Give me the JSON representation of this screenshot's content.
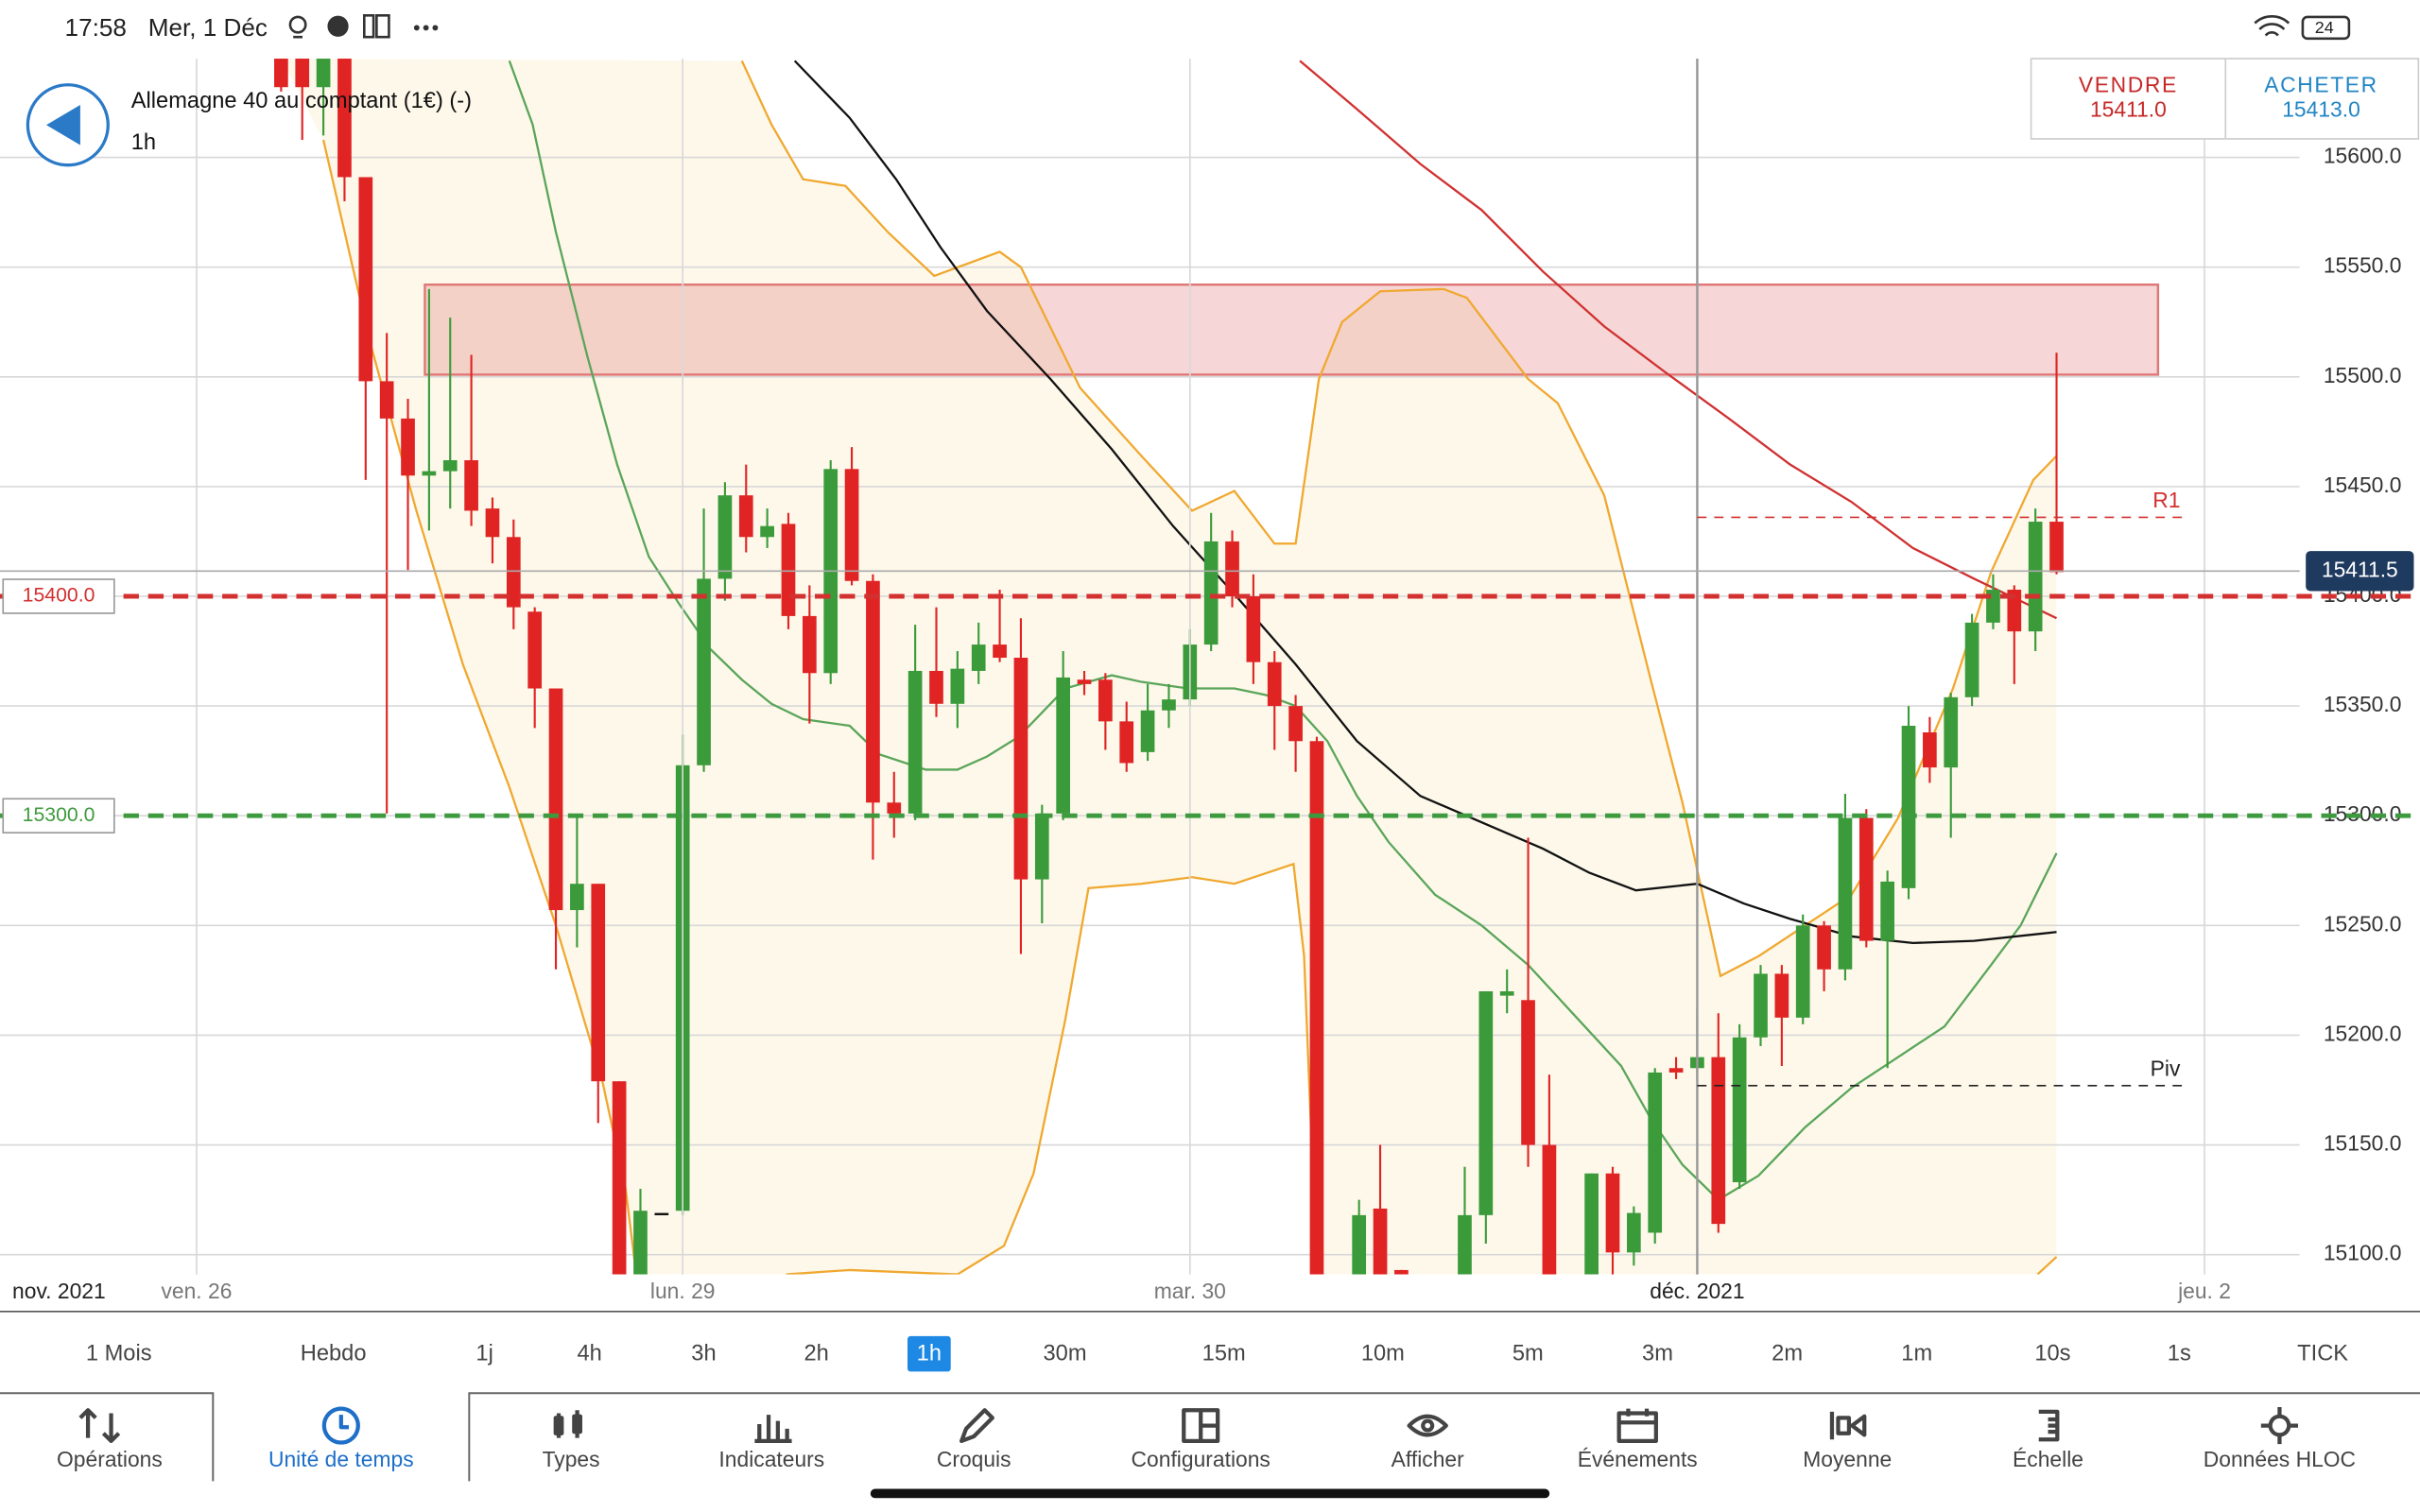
{
  "status_bar": {
    "time": "17:58",
    "date": "Mer, 1 Déc",
    "battery": "24"
  },
  "instrument": {
    "name": "Allemagne 40 au comptant (1€) (-)",
    "timeframe": "1h"
  },
  "quote": {
    "sell_label": "VENDRE",
    "sell_price": "15411.0",
    "buy_label": "ACHETER",
    "buy_price": "15413.0"
  },
  "chart_data": {
    "type": "candlestick",
    "x": [
      0,
      1,
      2,
      3,
      4,
      5,
      6,
      7,
      8,
      9,
      10,
      11,
      12,
      13,
      14,
      15,
      16,
      17,
      18,
      19,
      20,
      21,
      22,
      23,
      24,
      25,
      26,
      27,
      28,
      29,
      30,
      31,
      32,
      33,
      34,
      35,
      36,
      37,
      38,
      39,
      40,
      41,
      42,
      43,
      44,
      45,
      46,
      47,
      48,
      49,
      51,
      52,
      53,
      56,
      57,
      58,
      59,
      60,
      62,
      63,
      64,
      65,
      66,
      67,
      68,
      69,
      70,
      71,
      72,
      73,
      74,
      75,
      76,
      77,
      78,
      79,
      80,
      81,
      82,
      83,
      84
    ],
    "open": [
      15645,
      15645,
      15632,
      15645,
      15591,
      15498,
      15481,
      15455,
      15457,
      15462,
      15440,
      15427,
      15393,
      15358,
      15257,
      15269,
      15179,
      15091,
      15119,
      15120,
      15323,
      15408,
      15446,
      15427,
      15433,
      15391,
      15365,
      15458,
      15407,
      15306,
      15301,
      15366,
      15351,
      15366,
      15378,
      15372,
      15271,
      15301,
      15362,
      15362,
      15343,
      15329,
      15348,
      15353,
      15378,
      15425,
      15400,
      15370,
      15350,
      15334,
      15091,
      15121,
      15093,
      15091,
      15118,
      15218,
      15216,
      15150,
      15091,
      15137,
      15101,
      15110,
      15185,
      15185,
      15190,
      15133,
      15199,
      15228,
      15208,
      15250,
      15230,
      15299,
      15243,
      15267,
      15338,
      15322,
      15354,
      15388,
      15403,
      15384,
      15434
    ],
    "high": [
      15645,
      15645,
      15645,
      15645,
      15591,
      15520,
      15490,
      15540,
      15527,
      15510,
      15445,
      15435,
      15395,
      15358,
      15300,
      15269,
      15179,
      15130,
      15119,
      15337,
      15440,
      15452,
      15460,
      15440,
      15438,
      15405,
      15462,
      15468,
      15410,
      15320,
      15387,
      15395,
      15375,
      15388,
      15403,
      15390,
      15305,
      15375,
      15366,
      15365,
      15352,
      15360,
      15360,
      15385,
      15438,
      15430,
      15410,
      15375,
      15355,
      15336,
      15125,
      15150,
      15093,
      15140,
      15220,
      15230,
      15290,
      15182,
      15137,
      15140,
      15122,
      15185,
      15190,
      15212,
      15210,
      15205,
      15232,
      15232,
      15255,
      15252,
      15310,
      15303,
      15275,
      15350,
      15345,
      15356,
      15392,
      15410,
      15405,
      15440,
      15511
    ],
    "low": [
      15630,
      15608,
      15610,
      15580,
      15453,
      15301,
      15412,
      15430,
      15440,
      15432,
      15415,
      15385,
      15340,
      15230,
      15240,
      15160,
      15091,
      15091,
      15119,
      15118,
      15320,
      15398,
      15420,
      15422,
      15385,
      15342,
      15360,
      15405,
      15280,
      15290,
      15298,
      15345,
      15340,
      15360,
      15370,
      15237,
      15251,
      15298,
      15355,
      15330,
      15320,
      15325,
      15340,
      15350,
      15375,
      15395,
      15360,
      15330,
      15320,
      15091,
      15091,
      15091,
      15091,
      15091,
      15105,
      15210,
      15140,
      15091,
      15091,
      15091,
      15095,
      15105,
      15180,
      15180,
      15110,
      15130,
      15195,
      15186,
      15205,
      15220,
      15225,
      15240,
      15185,
      15262,
      15315,
      15290,
      15350,
      15385,
      15360,
      15375,
      15410
    ],
    "close": [
      15632,
      15632,
      15645,
      15591,
      15498,
      15481,
      15455,
      15457,
      15462,
      15439,
      15427,
      15395,
      15358,
      15257,
      15269,
      15179,
      15091,
      15120,
      15119,
      15323,
      15408,
      15446,
      15427,
      15432,
      15391,
      15365,
      15458,
      15407,
      15306,
      15301,
      15366,
      15351,
      15367,
      15378,
      15372,
      15271,
      15301,
      15363,
      15360,
      15343,
      15324,
      15348,
      15353,
      15378,
      15425,
      15400,
      15370,
      15350,
      15334,
      15091,
      15118,
      15091,
      15091,
      15118,
      15220,
      15220,
      15150,
      15091,
      15137,
      15101,
      15119,
      15183,
      15183,
      15190,
      15114,
      15199,
      15228,
      15208,
      15250,
      15230,
      15299,
      15243,
      15270,
      15341,
      15322,
      15354,
      15388,
      15403,
      15384,
      15434,
      15411
    ],
    "up_color": "#3b9b3b",
    "down_color": "#e02424",
    "doji_color": "#111111",
    "xlim": [
      -13.3,
      95.5
    ],
    "xticks": [
      {
        "value": -4,
        "label": "ven. 26"
      },
      {
        "value": 19,
        "label": "lun. 29"
      },
      {
        "value": 43,
        "label": "mar. 30"
      },
      {
        "value": 67,
        "label": "déc. 2021"
      },
      {
        "value": 91,
        "label": "jeu. 2"
      }
    ],
    "month_label": "nov. 2021",
    "ylim": [
      15091,
      15645
    ],
    "yticks": [
      {
        "value": 15100,
        "label": "15100.0"
      },
      {
        "value": 15150,
        "label": "15150.0"
      },
      {
        "value": 15200,
        "label": "15200.0"
      },
      {
        "value": 15250,
        "label": "15250.0"
      },
      {
        "value": 15300,
        "label": "15300.0"
      },
      {
        "value": 15350,
        "label": "15350.0"
      },
      {
        "value": 15400,
        "label": "15400.0"
      },
      {
        "value": 15450,
        "label": "15450.0"
      },
      {
        "value": 15500,
        "label": "15500.0"
      },
      {
        "value": 15550,
        "label": "15550.0"
      },
      {
        "value": 15600,
        "label": "15600.0"
      }
    ],
    "grid": true,
    "zone": {
      "x": [
        6.8,
        88.8
      ],
      "y": [
        15501,
        15542
      ],
      "color": "#e07878"
    },
    "band_fill": "#fdf8ea",
    "overlays": [
      {
        "color": "#f0a830",
        "x": [
          21.8,
          23.2,
          24.7,
          26.7,
          28.7,
          30.9,
          34.0,
          35.0,
          37.8,
          40.7,
          43.1,
          45.1,
          47.0,
          48.0,
          49.1,
          50.2,
          52.0,
          55.0,
          56.1,
          59.0,
          60.4,
          62.6,
          64.8,
          66.3,
          68.1,
          69.9,
          72.1,
          74.3,
          76.5,
          79.1,
          80.9,
          82.9,
          84.0
        ],
        "values": [
          15644,
          15615,
          15590,
          15587,
          15566,
          15546,
          15557,
          15550,
          15495,
          15464,
          15439,
          15448,
          15424,
          15424,
          15499,
          15525,
          15539,
          15540,
          15536,
          15499,
          15488,
          15446,
          15362,
          15306,
          15227,
          15236,
          15250,
          15264,
          15299,
          15358,
          15411,
          15453,
          15464
        ]
      },
      {
        "color": "#f0a830",
        "x": [
          2.0,
          4.2,
          6.4,
          8.6,
          10.8,
          13.0,
          15.2,
          16.3,
          16.8,
          20,
          23.9,
          26.9,
          32.0,
          34.2,
          35.6,
          37.1,
          38.2,
          40.7,
          43.1,
          45.1,
          47.9,
          48.4,
          49.0,
          66,
          83.1,
          84.0
        ],
        "values": [
          15608,
          15516,
          15439,
          15369,
          15313,
          15250,
          15179,
          15130,
          15091,
          null,
          15091,
          15093,
          15091,
          15104,
          15137,
          15207,
          15267,
          15269,
          15272,
          15269,
          15278,
          15236,
          15091,
          null,
          15091,
          15099
        ]
      },
      {
        "color": "#5aa55a",
        "x": [
          10.8,
          11.9,
          13.0,
          14.5,
          15.9,
          17.4,
          18.8,
          20.3,
          21.8,
          23.2,
          24.7,
          26.9,
          28.3,
          30.5,
          32.0,
          33.4,
          34.9,
          37.1,
          39.3,
          40.7,
          42.9,
          45.1,
          46.6,
          48.0,
          49.5,
          50.9,
          52.4,
          54.6,
          56.8,
          59.0,
          61.2,
          63.4,
          64.8,
          66.3,
          68.0,
          69.9,
          72.1,
          74.3,
          76.5,
          78.7,
          80.9,
          82.3,
          84.0
        ],
        "values": [
          15644,
          15615,
          15566,
          15509,
          15460,
          15418,
          15397,
          15376,
          15362,
          15351,
          15344,
          15341,
          15328,
          15321,
          15321,
          15327,
          15336,
          15358,
          15364,
          15361,
          15358,
          15358,
          15355,
          15350,
          15334,
          15309,
          15288,
          15264,
          15250,
          15232,
          15209,
          15186,
          15162,
          15141,
          15125,
          15136,
          15158,
          15176,
          15190,
          15204,
          15232,
          15250,
          15283
        ]
      },
      {
        "color": "#111111",
        "x": [
          24.3,
          26.9,
          29.1,
          31.2,
          33.4,
          36.4,
          39.3,
          42.2,
          45.1,
          48.0,
          50.9,
          53.9,
          56.8,
          59.7,
          61.9,
          64.1,
          67.0,
          69.2,
          71.4,
          74.3,
          77.2,
          80.1,
          84.0
        ],
        "values": [
          15644,
          15618,
          15590,
          15559,
          15530,
          15499,
          15467,
          15432,
          15401,
          15369,
          15334,
          15309,
          15297,
          15285,
          15274,
          15266,
          15269,
          15260,
          15253,
          15245,
          15242,
          15243,
          15247
        ]
      },
      {
        "color": "#d03030",
        "x": [
          48.2,
          50.9,
          53.9,
          56.8,
          59.7,
          62.6,
          65.5,
          68.5,
          71.4,
          74.3,
          77.2,
          80.1,
          84.0
        ],
        "values": [
          15644,
          15622,
          15597,
          15576,
          15548,
          15523,
          15502,
          15481,
          15460,
          15443,
          15422,
          15408,
          15390
        ]
      }
    ],
    "levels": [
      {
        "value": 15400,
        "label": "15400.0",
        "color": "#d33030",
        "style": "bold",
        "label_position": "left"
      },
      {
        "value": 15300,
        "label": "15300.0",
        "color": "#3e9a3e",
        "style": "bold",
        "label_position": "left"
      },
      {
        "value": 15436,
        "label": "R1",
        "color": "#d33030",
        "style": "thin",
        "label_position": "right"
      },
      {
        "value": 15177,
        "label": "Piv",
        "color": "#222222",
        "style": "thin",
        "label_position": "right"
      }
    ],
    "last_price": {
      "value": 15411.5,
      "label": "15411.5"
    }
  },
  "timeframes": {
    "items": [
      "1 Mois",
      "Hebdo",
      "1j",
      "4h",
      "3h",
      "2h",
      "1h",
      "30m",
      "15m",
      "10m",
      "5m",
      "3m",
      "2m",
      "1m",
      "10s",
      "1s",
      "TICK"
    ],
    "selected": 6
  },
  "toolbar": {
    "items": [
      "Opérations",
      "Unité de temps",
      "Types",
      "Indicateurs",
      "Croquis",
      "Configurations",
      "Afficher",
      "Événements",
      "Moyenne",
      "Échelle",
      "Données HLOC"
    ],
    "selected": 1
  }
}
